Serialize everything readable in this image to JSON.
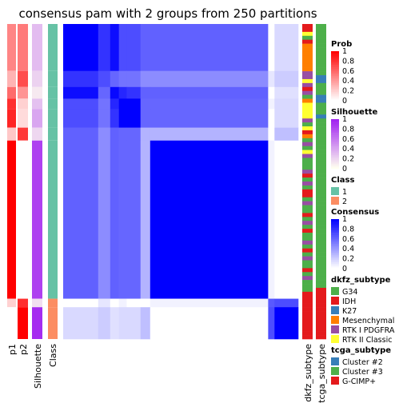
{
  "chart_data": {
    "type": "heatmap",
    "title": "consensus pam with 2 groups from 250 partitions",
    "annotation_columns": [
      "p1",
      "p2",
      "Silhouette",
      "Class"
    ],
    "right_annotation_columns": [
      "dkfz_subtype",
      "tcga_subtype"
    ],
    "legends": {
      "prob": {
        "title": "Prob",
        "ticks": [
          "1",
          "0.8",
          "0.6",
          "0.4",
          "0.2",
          "0"
        ]
      },
      "silhouette": {
        "title": "Silhouette",
        "ticks": [
          "1",
          "0.8",
          "0.6",
          "0.4",
          "0.2",
          "0"
        ]
      },
      "class": {
        "title": "Class",
        "items": [
          {
            "label": "1",
            "color": "#66C2A5"
          },
          {
            "label": "2",
            "color": "#FC8D62"
          }
        ]
      },
      "consensus": {
        "title": "Consensus",
        "ticks": [
          "1",
          "0.8",
          "0.6",
          "0.4",
          "0.2",
          "0"
        ]
      },
      "dkfz_subtype": {
        "title": "dkfz_subtype",
        "items": [
          {
            "label": "G34",
            "color": "#4DAF4A"
          },
          {
            "label": "IDH",
            "color": "#E41A1C"
          },
          {
            "label": "K27",
            "color": "#377EB8"
          },
          {
            "label": "Mesenchymal",
            "color": "#FF7F00"
          },
          {
            "label": "RTK I PDGFRA",
            "color": "#984EA3"
          },
          {
            "label": "RTK II Classic",
            "color": "#FFFF33"
          }
        ]
      },
      "tcga_subtype": {
        "title": "tcga_subtype",
        "items": [
          {
            "label": "Cluster #2",
            "color": "#377EB8"
          },
          {
            "label": "Cluster #3",
            "color": "#4DAF4A"
          },
          {
            "label": "G-CIMP+",
            "color": "#E41A1C"
          }
        ]
      }
    },
    "segments": [
      {
        "frac": 0.149,
        "p1": 0.48,
        "sil": 0.3,
        "class": "1"
      },
      {
        "frac": 0.051,
        "p1": 0.3,
        "sil": 0.2,
        "class": "1"
      },
      {
        "frac": 0.037,
        "p1": 0.58,
        "sil": 0.1,
        "class": "1"
      },
      {
        "frac": 0.033,
        "p1": 0.82,
        "sil": 0.28,
        "class": "1"
      },
      {
        "frac": 0.059,
        "p1": 0.86,
        "sil": 0.4,
        "class": "1"
      },
      {
        "frac": 0.041,
        "p1": 0.22,
        "sil": 0.18,
        "class": "1"
      },
      {
        "frac": 0.502,
        "p1": 1.0,
        "sil": 0.85,
        "class": "1"
      },
      {
        "frac": 0.027,
        "p1": 0.18,
        "sil": 0.15,
        "class": "2"
      },
      {
        "frac": 0.101,
        "p1": 0.0,
        "sil": 0.95,
        "class": "2"
      }
    ],
    "consensus_matrix": [
      [
        1.0,
        0.8,
        0.95,
        0.7,
        0.7,
        0.62,
        0.62,
        0.0,
        0.15
      ],
      [
        0.8,
        0.7,
        0.6,
        0.55,
        0.55,
        0.45,
        0.45,
        0.1,
        0.2
      ],
      [
        0.95,
        0.6,
        0.97,
        0.85,
        0.8,
        0.62,
        0.62,
        0.0,
        0.12
      ],
      [
        0.7,
        0.55,
        0.85,
        1.0,
        1.0,
        0.6,
        0.6,
        0.05,
        0.15
      ],
      [
        0.7,
        0.55,
        0.8,
        1.0,
        1.0,
        0.6,
        0.6,
        0.0,
        0.15
      ],
      [
        0.62,
        0.45,
        0.62,
        0.6,
        0.6,
        0.3,
        0.3,
        0.0,
        0.25
      ],
      [
        0.62,
        0.45,
        0.62,
        0.6,
        0.6,
        0.3,
        1.0,
        0.05,
        0.0
      ],
      [
        0.0,
        0.1,
        0.0,
        0.05,
        0.0,
        0.0,
        0.05,
        0.65,
        0.7
      ],
      [
        0.15,
        0.2,
        0.12,
        0.15,
        0.15,
        0.25,
        0.0,
        0.7,
        1.0
      ]
    ],
    "dkfz_subtype_track": [
      "E41A1C",
      "E41A1C",
      "FFFF33",
      "4DAF4A",
      "E41A1C",
      "FF7F00",
      "FF7F00",
      "FF7F00",
      "FF7F00",
      "FF7F00",
      "FF7F00",
      "FF7F00",
      "984EA3",
      "984EA3",
      "FFFF33",
      "984EA3",
      "E41A1C",
      "984EA3",
      "4DAF4A",
      "FF7F00",
      "FFFF33",
      "FFFF33",
      "FFFF33",
      "FFFF33",
      "984EA3",
      "4DAF4A",
      "FFFF33",
      "E41A1C",
      "FF7F00",
      "4DAF4A",
      "984EA3",
      "4DAF4A",
      "FFFF33",
      "984EA3",
      "4DAF4A",
      "4DAF4A",
      "4DAF4A",
      "984EA3",
      "E41A1C",
      "4DAF4A",
      "984EA3",
      "4DAF4A",
      "E41A1C",
      "E41A1C",
      "4DAF4A",
      "984EA3",
      "4DAF4A",
      "4DAF4A",
      "E41A1C",
      "4DAF4A",
      "984EA3",
      "4DAF4A",
      "E41A1C",
      "4DAF4A",
      "4DAF4A",
      "984EA3",
      "4DAF4A",
      "E41A1C",
      "4DAF4A",
      "984EA3",
      "4DAF4A",
      "4DAF4A",
      "E41A1C",
      "4DAF4A",
      "984EA3",
      "4DAF4A",
      "4DAF4A",
      "4DAF4A",
      "E41A1C",
      "E41A1C",
      "E41A1C",
      "E41A1C",
      "E41A1C",
      "E41A1C",
      "E41A1C",
      "E41A1C",
      "E41A1C",
      "E41A1C",
      "E41A1C",
      "E41A1C"
    ],
    "tcga_subtype_track": [
      "4DAF4A",
      "4DAF4A",
      "4DAF4A",
      "4DAF4A",
      "4DAF4A",
      "4DAF4A",
      "4DAF4A",
      "4DAF4A",
      "4DAF4A",
      "4DAF4A",
      "4DAF4A",
      "4DAF4A",
      "4DAF4A",
      "377EB8",
      "377EB8",
      "4DAF4A",
      "4DAF4A",
      "4DAF4A",
      "377EB8",
      "377EB8",
      "4DAF4A",
      "4DAF4A",
      "4DAF4A",
      "377EB8",
      "4DAF4A",
      "4DAF4A",
      "4DAF4A",
      "4DAF4A",
      "4DAF4A",
      "4DAF4A",
      "4DAF4A",
      "4DAF4A",
      "4DAF4A",
      "4DAF4A",
      "4DAF4A",
      "4DAF4A",
      "4DAF4A",
      "4DAF4A",
      "4DAF4A",
      "4DAF4A",
      "4DAF4A",
      "4DAF4A",
      "4DAF4A",
      "4DAF4A",
      "4DAF4A",
      "4DAF4A",
      "4DAF4A",
      "4DAF4A",
      "4DAF4A",
      "4DAF4A",
      "4DAF4A",
      "4DAF4A",
      "4DAF4A",
      "4DAF4A",
      "4DAF4A",
      "4DAF4A",
      "4DAF4A",
      "4DAF4A",
      "4DAF4A",
      "4DAF4A",
      "4DAF4A",
      "4DAF4A",
      "4DAF4A",
      "4DAF4A",
      "4DAF4A",
      "4DAF4A",
      "4DAF4A",
      "E41A1C",
      "E41A1C",
      "E41A1C",
      "E41A1C",
      "E41A1C",
      "E41A1C",
      "E41A1C",
      "E41A1C",
      "E41A1C",
      "E41A1C",
      "E41A1C",
      "E41A1C",
      "E41A1C"
    ]
  }
}
